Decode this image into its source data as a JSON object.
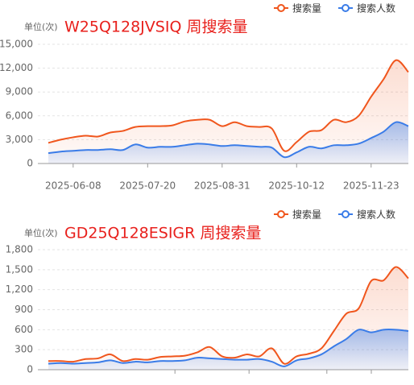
{
  "chart_data": [
    {
      "type": "line",
      "title": "W25Q128JVSIQ 周搜索量",
      "y_label": "单位(次)",
      "categories": [
        null,
        null,
        "2025-06-08",
        null,
        null,
        null,
        null,
        null,
        "2025-07-20",
        null,
        null,
        null,
        null,
        null,
        "2025-08-31",
        null,
        null,
        null,
        null,
        null,
        "2025-10-12",
        null,
        null,
        null,
        null,
        null,
        "2025-11-23",
        null,
        null,
        null
      ],
      "series": [
        {
          "name": "搜索量",
          "color": "#f0561d",
          "values": [
            2600,
            3000,
            3300,
            3500,
            3400,
            3900,
            4100,
            4600,
            4700,
            4700,
            4800,
            5300,
            5500,
            5500,
            4700,
            5200,
            4700,
            4600,
            4400,
            1600,
            2700,
            4000,
            4200,
            5500,
            5200,
            6000,
            8400,
            10600,
            13000,
            11500
          ]
        },
        {
          "name": "搜索人数",
          "color": "#3a7ce8",
          "values": [
            1300,
            1500,
            1600,
            1700,
            1700,
            1800,
            1700,
            2400,
            2000,
            2100,
            2100,
            2300,
            2500,
            2400,
            2200,
            2300,
            2200,
            2100,
            2000,
            800,
            1400,
            2100,
            1900,
            2300,
            2300,
            2500,
            3200,
            4000,
            5200,
            4700
          ]
        }
      ],
      "ylim": [
        0,
        15000
      ],
      "yticks": [
        0,
        {
          "value": 3000,
          "label": "3,000"
        },
        {
          "value": 6000,
          "label": "6,000"
        },
        {
          "value": 9000,
          "label": "9,000"
        },
        {
          "value": 12000,
          "label": "12,000"
        },
        {
          "value": 15000,
          "label": "15,000"
        }
      ],
      "grid": true,
      "legend": "top-right"
    },
    {
      "type": "line",
      "title": "GD25Q128ESIGR 周搜索量",
      "y_label": "单位(次)",
      "categories": [
        null,
        null,
        null,
        null,
        null,
        null,
        null,
        null,
        null,
        null,
        null,
        null,
        null,
        null,
        null,
        null,
        null,
        null,
        null,
        null,
        null,
        null,
        null,
        null,
        null,
        null,
        null,
        null,
        null,
        null
      ],
      "series": [
        {
          "name": "搜索量",
          "color": "#f0561d",
          "values": [
            130,
            130,
            120,
            160,
            170,
            230,
            130,
            160,
            150,
            190,
            200,
            210,
            260,
            340,
            200,
            180,
            230,
            200,
            320,
            90,
            200,
            240,
            320,
            580,
            840,
            920,
            1330,
            1340,
            1540,
            1370
          ]
        },
        {
          "name": "搜索人数",
          "color": "#3a7ce8",
          "values": [
            90,
            100,
            90,
            100,
            110,
            140,
            100,
            120,
            110,
            130,
            130,
            140,
            180,
            170,
            160,
            150,
            150,
            160,
            120,
            50,
            140,
            170,
            230,
            350,
            460,
            600,
            560,
            600,
            600,
            580
          ]
        }
      ],
      "ylim": [
        0,
        1800
      ],
      "yticks": [
        0,
        300,
        600,
        900,
        {
          "value": 1200,
          "label": "1,200"
        },
        {
          "value": 1500,
          "label": "1,500"
        },
        {
          "value": 1800,
          "label": "1,800"
        }
      ],
      "grid": true,
      "legend": "top-right"
    }
  ]
}
